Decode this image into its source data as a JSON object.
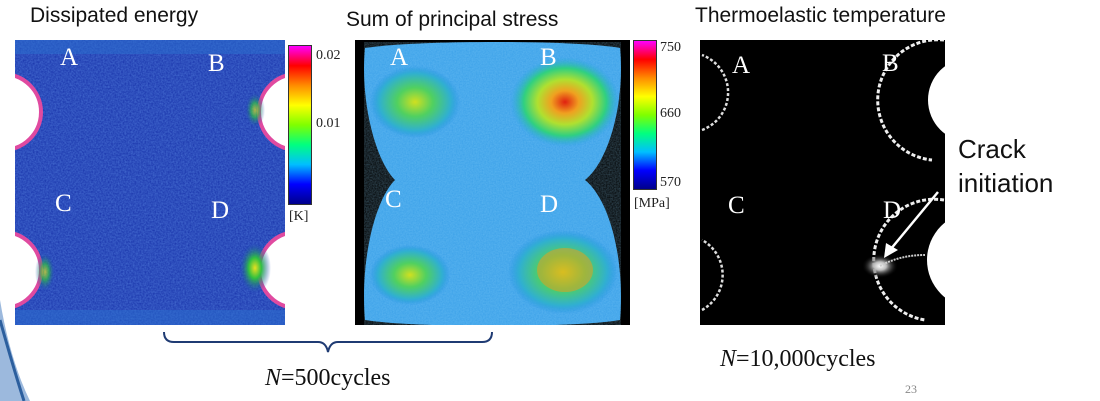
{
  "titles": {
    "dissipated": "Dissipated energy",
    "principal": "Sum of principal stress",
    "thermo": "Thermoelastic temperature"
  },
  "panel_letters": {
    "a": "A",
    "b": "B",
    "c": "C",
    "d": "D"
  },
  "colorbar_dissipated": {
    "ticks": [
      "0.02",
      "0.01"
    ],
    "unit": "[K]",
    "colormap": "jet"
  },
  "colorbar_principal": {
    "ticks": [
      "750",
      "660",
      "570"
    ],
    "unit": "[MPa]",
    "colormap": "jet"
  },
  "annotation": {
    "line1": "Crack",
    "line2": "initiation"
  },
  "captions": {
    "cycles_500_var": "N",
    "cycles_500_text": "=500cycles",
    "cycles_10000_var": "N",
    "cycles_10000_text": "=10,000cycles"
  },
  "page_number": "23"
}
